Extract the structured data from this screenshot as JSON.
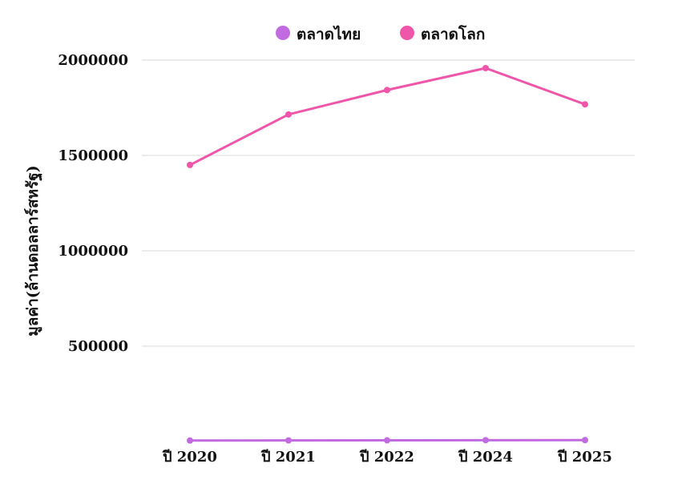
{
  "chart_data": {
    "type": "line",
    "categories": [
      "ปี 2020",
      "ปี 2021",
      "ปี 2022",
      "ปี 2024",
      "ปี 2025"
    ],
    "series": [
      {
        "name": "ตลาดไทย",
        "color": "#c26be0",
        "values": [
          5000,
          5800,
          6200,
          6900,
          7300
        ]
      },
      {
        "name": "ตลาดโลก",
        "color": "#ef56aa",
        "values": [
          1450000,
          1715000,
          1843000,
          1958000,
          1768000
        ]
      }
    ],
    "ylabel": "มูลค่า(ล้านดอลลาร์สหรัฐ)",
    "yticks": [
      500000,
      1000000,
      1500000,
      2000000
    ],
    "ylim": [
      0,
      2000000
    ],
    "grid": true,
    "legend": "top-center"
  }
}
